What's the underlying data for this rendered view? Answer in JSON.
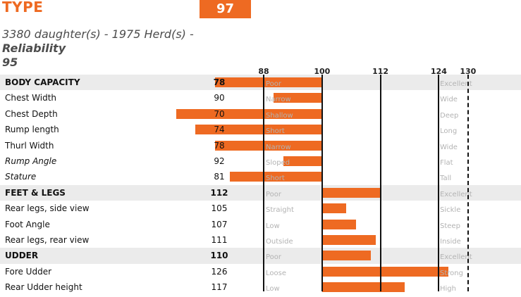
{
  "header": {
    "title": "TYPE",
    "score": "97",
    "meta_line": "3380 daughter(s) - 1975 Herd(s) - ",
    "reliability_label": "Reliability",
    "reliability_value": "95"
  },
  "colors": {
    "accent": "#ee6a22",
    "section_band": "#ebebeb",
    "hint_text": "#b3b3b3"
  },
  "chart_data": {
    "type": "bar",
    "orientation": "horizontal",
    "baseline": 100,
    "x_ticks": [
      "88",
      "100",
      "112",
      "124",
      "130"
    ],
    "xlim": [
      88,
      130
    ],
    "solid_lines_at": [
      88,
      100,
      112,
      124
    ],
    "dashed_lines_at": [
      130
    ],
    "rows": [
      {
        "label": "BODY CAPACITY",
        "value": 78,
        "left": "Poor",
        "right": "Excellent",
        "section": true,
        "italic": false
      },
      {
        "label": "Chest Width",
        "value": 90,
        "left": "Narrow",
        "right": "Wide",
        "section": false,
        "italic": false
      },
      {
        "label": "Chest Depth",
        "value": 70,
        "left": "Shallow",
        "right": "Deep",
        "section": false,
        "italic": false
      },
      {
        "label": "Rump length",
        "value": 74,
        "left": "Short",
        "right": "Long",
        "section": false,
        "italic": false
      },
      {
        "label": "Thurl Width",
        "value": 78,
        "left": "Narrow",
        "right": "Wide",
        "section": false,
        "italic": false
      },
      {
        "label": "Rump Angle",
        "value": 92,
        "left": "Sloped",
        "right": "Flat",
        "section": false,
        "italic": true
      },
      {
        "label": "Stature",
        "value": 81,
        "left": "Short",
        "right": "Tall",
        "section": false,
        "italic": true
      },
      {
        "label": "FEET & LEGS",
        "value": 112,
        "left": "Poor",
        "right": "Excellent",
        "section": true,
        "italic": false
      },
      {
        "label": "Rear legs, side view",
        "value": 105,
        "left": "Straight",
        "right": "Sickle",
        "section": false,
        "italic": false
      },
      {
        "label": "Foot Angle",
        "value": 107,
        "left": "Low",
        "right": "Steep",
        "section": false,
        "italic": false
      },
      {
        "label": "Rear legs, rear view",
        "value": 111,
        "left": "Outside",
        "right": "Inside",
        "section": false,
        "italic": false
      },
      {
        "label": "UDDER",
        "value": 110,
        "left": "Poor",
        "right": "Excellent",
        "section": true,
        "italic": false
      },
      {
        "label": "Fore Udder",
        "value": 126,
        "left": "Loose",
        "right": "Strong",
        "section": false,
        "italic": false
      },
      {
        "label": "Rear Udder height",
        "value": 117,
        "left": "Low",
        "right": "High",
        "section": false,
        "italic": false
      }
    ]
  }
}
